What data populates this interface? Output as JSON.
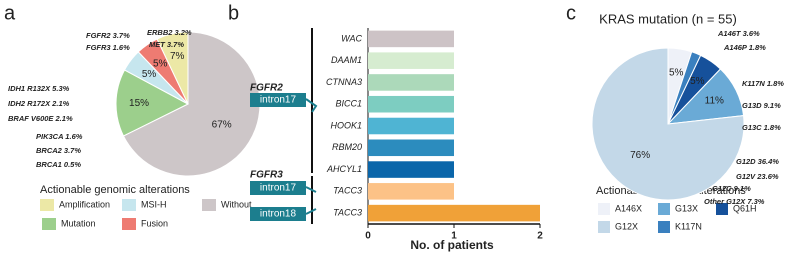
{
  "chart_data": [
    {
      "type": "pie",
      "panel_label": "a",
      "categories": [
        "Without",
        "Mutation",
        "MSI-H",
        "Fusion",
        "Amplification"
      ],
      "values": [
        67,
        15,
        5,
        5,
        7
      ],
      "value_labels": [
        "67%",
        "15%",
        "5%",
        "5%",
        "7%"
      ],
      "colors": [
        "#cdc6c8",
        "#9ccf8c",
        "#c6e6ee",
        "#ee7b72",
        "#ece8a6"
      ],
      "annotations": [
        "FGFR2 3.7%",
        "ERBB2 3.2%",
        "FGFR3 1.6%",
        "MET 3.7%",
        "IDH1 R132X 5.3%",
        "IDH2 R172X 2.1%",
        "BRAF V600E 2.1%",
        "PIK3CA 1.6%",
        "BRCA2 3.7%",
        "BRCA1 0.5%"
      ],
      "legend_title": "Actionable genomic alterations"
    },
    {
      "type": "hbar",
      "panel_label": "b",
      "categories": [
        "WAC",
        "DAAM1",
        "CTNNA3",
        "BICC1",
        "HOOK1",
        "RBM20",
        "AHCYL1",
        "TACC3",
        "TACC3"
      ],
      "values": [
        1,
        1,
        1,
        1,
        1,
        1,
        1,
        1,
        2
      ],
      "colors": [
        "#cdc3c6",
        "#d6ecd0",
        "#acd9ba",
        "#7dcdc1",
        "#4fb4d3",
        "#2c8cbe",
        "#0a66aa",
        "#fcc287",
        "#f0a138"
      ],
      "xlim": [
        0,
        2
      ],
      "xticks": [
        0,
        1,
        2
      ],
      "xlabel": "No. of patients",
      "groups": [
        {
          "gene": "FGFR2",
          "labels": [
            "intron17"
          ]
        },
        {
          "gene": "FGFR3",
          "labels": [
            "intron17",
            "intron18"
          ]
        }
      ]
    },
    {
      "type": "pie",
      "panel_label": "c",
      "title": "KRAS mutation (n = 55)",
      "categories": [
        "A146X",
        "K117N",
        "Q61H",
        "G13X",
        "G12X"
      ],
      "values": [
        5,
        2,
        5,
        11,
        76
      ],
      "value_labels": [
        "5%",
        null,
        "5%",
        "11%",
        "76%"
      ],
      "colors": [
        "#eef1f8",
        "#3a80bf",
        "#16519b",
        "#6aaad6",
        "#c3d8e8"
      ],
      "annotations": [
        "A146T 3.6%",
        "A146P 1.8%",
        "K117N 1.8%",
        "G13D 9.1%",
        "G13C 1.8%",
        "G12D 36.4%",
        "G12V 23.6%",
        "G12C 9.1%",
        "Other G12X 7.3%"
      ],
      "legend_title": "Actionable genomic alterations"
    }
  ]
}
